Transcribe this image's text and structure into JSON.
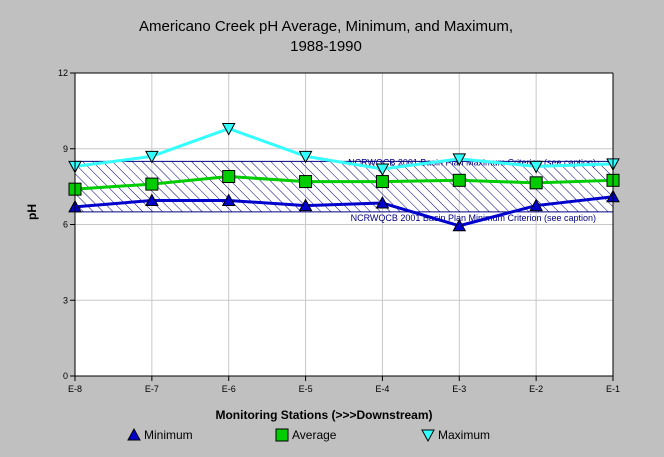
{
  "chart_data": {
    "type": "line",
    "title_line1": "Americano Creek pH Average, Minimum, and Maximum,",
    "title_line2": "1988-1990",
    "xlabel": "Monitoring Stations (>>>Downstream)",
    "ylabel": "pH",
    "categories": [
      "E-8",
      "E-7",
      "E-6",
      "E-5",
      "E-4",
      "E-3",
      "E-2",
      "E-1"
    ],
    "ylim": [
      0,
      12
    ],
    "yticks": [
      0,
      3,
      6,
      9,
      12
    ],
    "grid": true,
    "legend_position": "bottom",
    "series": [
      {
        "name": "Minimum",
        "marker": "triangle-up",
        "color": "#0000cc",
        "values": [
          6.7,
          6.95,
          6.95,
          6.75,
          6.85,
          5.95,
          6.75,
          7.1
        ]
      },
      {
        "name": "Average",
        "marker": "square",
        "color": "#00cc00",
        "values": [
          7.4,
          7.6,
          7.9,
          7.7,
          7.7,
          7.75,
          7.65,
          7.75
        ]
      },
      {
        "name": "Maximum",
        "marker": "triangle-down",
        "color": "#33ffff",
        "values": [
          8.3,
          8.7,
          9.8,
          8.7,
          8.2,
          8.6,
          8.3,
          8.4
        ]
      }
    ],
    "criterion_band": {
      "min": 6.5,
      "max": 8.5,
      "color": "#000080",
      "label_max": "NCRWQCB 2001 Basin Plan Maximum Criterion (see caption)",
      "label_min": "NCRWQCB 2001 Basin Plan Minimum Criterion (see caption)"
    }
  }
}
